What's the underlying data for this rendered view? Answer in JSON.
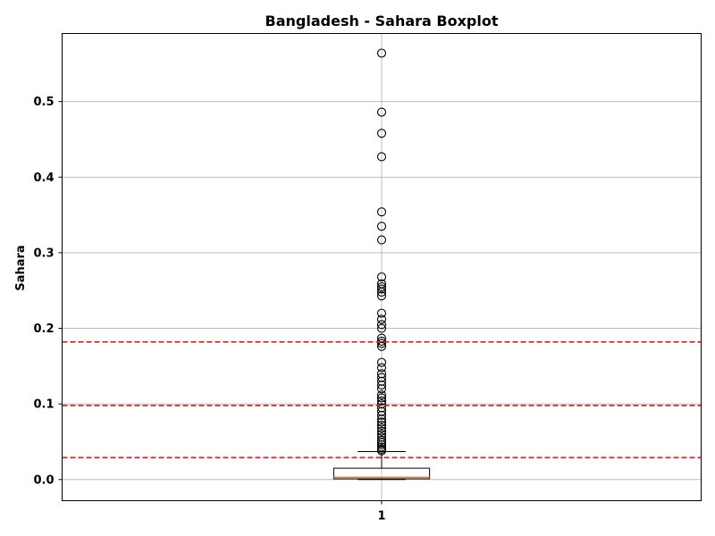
{
  "chart_data": {
    "type": "boxplot",
    "title": "Bangladesh - Sahara Boxplot",
    "ylabel": "Sahara",
    "xlabel": "",
    "ylim": [
      -0.028,
      0.59
    ],
    "xlim": [
      0.5,
      1.5
    ],
    "x_ticks": [
      {
        "value": 1,
        "label": "1"
      }
    ],
    "y_ticks": [
      {
        "value": 0.0,
        "label": "0.0"
      },
      {
        "value": 0.1,
        "label": "0.1"
      },
      {
        "value": 0.2,
        "label": "0.2"
      },
      {
        "value": 0.3,
        "label": "0.3"
      },
      {
        "value": 0.4,
        "label": "0.4"
      },
      {
        "value": 0.5,
        "label": "0.5"
      }
    ],
    "grid": true,
    "box": {
      "position": 1,
      "q1": 0.001,
      "median": 0.003,
      "q3": 0.015,
      "whisker_low": 0.0,
      "whisker_high": 0.037,
      "outliers": [
        0.564,
        0.486,
        0.458,
        0.427,
        0.354,
        0.335,
        0.317,
        0.268,
        0.259,
        0.255,
        0.252,
        0.248,
        0.243,
        0.22,
        0.212,
        0.205,
        0.2,
        0.187,
        0.183,
        0.18,
        0.176,
        0.155,
        0.148,
        0.14,
        0.135,
        0.13,
        0.125,
        0.12,
        0.112,
        0.108,
        0.104,
        0.1,
        0.095,
        0.09,
        0.085,
        0.08,
        0.076,
        0.072,
        0.068,
        0.064,
        0.06,
        0.056,
        0.052,
        0.049,
        0.046,
        0.043,
        0.04,
        0.038
      ]
    },
    "reference_lines": [
      {
        "value": 0.182,
        "color": "#d62728"
      },
      {
        "value": 0.098,
        "color": "#d62728"
      },
      {
        "value": 0.029,
        "color": "#d62728"
      }
    ],
    "colors": {
      "median": "#ff7f0e",
      "reference": "#d62728"
    }
  }
}
